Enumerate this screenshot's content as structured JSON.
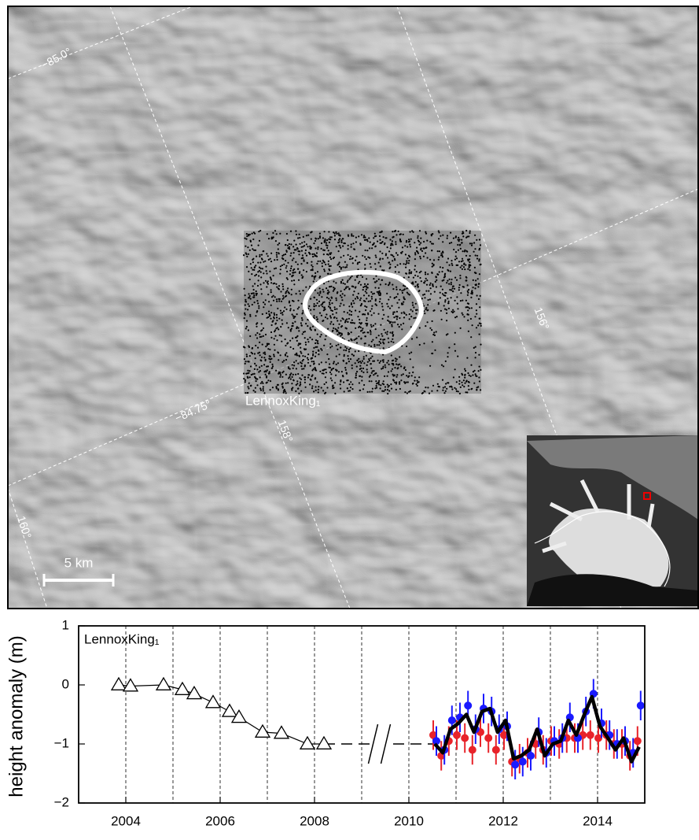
{
  "map": {
    "label": "LennoxKing₁",
    "scale_bar": "5 km",
    "lat_labels": [
      "−85.0°",
      "−84.75°"
    ],
    "lon_labels": [
      "156°",
      "158°",
      "160°"
    ]
  },
  "chart_data": {
    "type": "scatter-line",
    "annotation": "LennoxKing₁",
    "y_label": "height anomaly (m)",
    "xlim": [
      2003,
      2015
    ],
    "ylim": [
      -2,
      1
    ],
    "xticks": [
      2004,
      2006,
      2008,
      2010,
      2012,
      2014
    ],
    "yticks": [
      1,
      0,
      {
        "value": -1,
        "label": "−1"
      },
      {
        "value": -2,
        "label": "−2"
      }
    ],
    "xgrid": [
      2004,
      2005,
      2006,
      2007,
      2008,
      2009,
      2010,
      2011,
      2012,
      2013,
      2014
    ],
    "triangles": {
      "color": "#000000",
      "x": [
        2003.85,
        2004.1,
        2004.8,
        2005.2,
        2005.45,
        2005.85,
        2006.2,
        2006.4,
        2006.9,
        2007.3,
        2007.85,
        2008.2
      ],
      "values": [
        0.0,
        -0.02,
        0.0,
        -0.08,
        -0.15,
        -0.3,
        -0.45,
        -0.55,
        -0.8,
        -0.82,
        -1.0,
        -1.0
      ]
    },
    "x": [
      2010.55,
      2010.72,
      2010.88,
      2011.05,
      2011.22,
      2011.38,
      2011.55,
      2011.72,
      2011.88,
      2012.05,
      2012.22,
      2012.38,
      2012.55,
      2012.72,
      2012.88,
      2013.05,
      2013.22,
      2013.38,
      2013.55,
      2013.72,
      2013.88,
      2014.05,
      2014.22,
      2014.38,
      2014.55,
      2014.72,
      2014.88
    ],
    "series": [
      {
        "color": "#e8232a",
        "error": 0.25,
        "values": [
          -0.85,
          -1.2,
          -0.95,
          -0.85,
          -0.9,
          -1.1,
          -0.8,
          -0.9,
          -1.1,
          -0.85,
          -1.3,
          -1.25,
          -1.15,
          -1.0,
          -1.1,
          -0.95,
          -1.0,
          -0.9,
          -0.9,
          -0.85,
          -0.85,
          -0.9,
          -0.85,
          -1.0,
          -1.0,
          -1.2,
          -0.95
        ]
      },
      {
        "color": "#1a1aff",
        "error": 0.25,
        "values": [
          -0.95,
          -1.1,
          -0.6,
          -0.55,
          -0.35,
          -0.75,
          -0.4,
          -0.45,
          -0.75,
          -0.7,
          -1.35,
          -1.3,
          -1.2,
          -0.8,
          -1.15,
          -0.95,
          -0.9,
          -0.55,
          -0.9,
          -0.45,
          -0.15,
          -0.65,
          -0.85,
          -1.0,
          -0.95,
          -1.15,
          -0.35
        ]
      },
      {
        "color": "#000000",
        "line": true,
        "values": [
          -1.0,
          -1.15,
          -0.75,
          -0.65,
          -0.5,
          -0.8,
          -0.45,
          -0.4,
          -0.8,
          -0.6,
          -1.25,
          -1.2,
          -1.1,
          -0.75,
          -1.2,
          -1.0,
          -0.95,
          -0.6,
          -0.85,
          -0.5,
          -0.2,
          -0.7,
          -0.9,
          -1.1,
          -0.9,
          -1.3,
          -1.05
        ]
      }
    ]
  }
}
